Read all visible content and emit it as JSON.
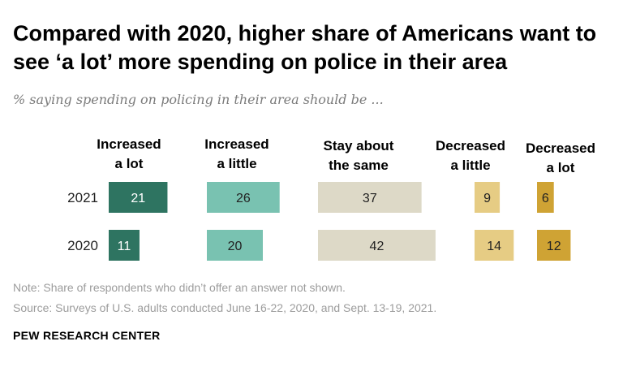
{
  "title": "Compared with 2020, higher share of Americans want to see ‘a lot’ more spending on police in their area",
  "subtitle": "% saying spending on policing in their area should be ...",
  "note": "Note: Share of respondents who didn’t offer an answer not shown.",
  "source": "Source: Surveys of U.S. adults conducted June 16-22, 2020, and Sept. 13-19, 2021.",
  "logo": "PEW RESEARCH CENTER",
  "chart_data": {
    "type": "bar",
    "orientation": "horizontal",
    "layout": "small-multiples",
    "categories": [
      "2021",
      "2020"
    ],
    "series": [
      {
        "name": "Increased a lot",
        "label_lines": [
          "Increased",
          "a lot"
        ],
        "values": [
          21,
          11
        ],
        "color": "#2e7461"
      },
      {
        "name": "Increased a little",
        "label_lines": [
          "Increased",
          "a little"
        ],
        "values": [
          26,
          20
        ],
        "color": "#79c2b1"
      },
      {
        "name": "Stay about the same",
        "label_lines": [
          "Stay about",
          "the same"
        ],
        "values": [
          37,
          42
        ],
        "color": "#ddd9c7"
      },
      {
        "name": "Decreased a little",
        "label_lines": [
          "Decreased",
          "a little"
        ],
        "values": [
          9,
          14
        ],
        "color": "#e6cc84"
      },
      {
        "name": "Decreased a lot",
        "label_lines": [
          "Decreased",
          "a lot"
        ],
        "values": [
          6,
          12
        ],
        "color": "#cfa334"
      }
    ],
    "value_label_color_dark": "#ffffff",
    "value_label_color_light": "#222222",
    "grid": false,
    "legend": "none"
  }
}
